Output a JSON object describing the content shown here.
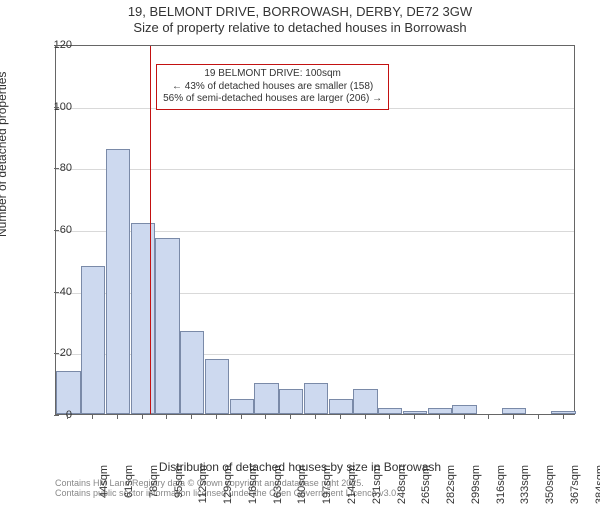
{
  "title": {
    "line1": "19, BELMONT DRIVE, BORROWASH, DERBY, DE72 3GW",
    "line2": "Size of property relative to detached houses in Borrowash"
  },
  "chart": {
    "type": "histogram",
    "background_color": "#ffffff",
    "grid_color": "#d9d9d9",
    "axis_color": "#666666",
    "bar_fill": "#cdd9ef",
    "bar_border": "#7a8aa8",
    "reference_line_color": "#c31111",
    "annotation_border": "#c31111",
    "ylim": [
      0,
      120
    ],
    "yticks": [
      0,
      20,
      40,
      60,
      80,
      100,
      120
    ],
    "xtick_labels": [
      "44sqm",
      "61sqm",
      "78sqm",
      "95sqm",
      "112sqm",
      "129sqm",
      "146sqm",
      "163sqm",
      "180sqm",
      "197sqm",
      "214sqm",
      "231sqm",
      "248sqm",
      "265sqm",
      "282sqm",
      "299sqm",
      "316sqm",
      "333sqm",
      "350sqm",
      "367sqm",
      "384sqm"
    ],
    "bars": [
      14,
      48,
      86,
      62,
      57,
      27,
      18,
      5,
      10,
      8,
      10,
      5,
      8,
      2,
      1,
      2,
      3,
      0,
      2,
      0,
      1
    ],
    "reference_value_index": 3.3,
    "ylabel": "Number of detached properties",
    "xlabel": "Distribution of detached houses by size in Borrowash",
    "label_fontsize": 12,
    "tick_fontsize": 11,
    "title_fontsize": 13,
    "annotation_fontsize": 10
  },
  "annotation": {
    "line1": "19 BELMONT DRIVE: 100sqm",
    "line2": "← 43% of detached houses are smaller (158)",
    "line3": "56% of semi-detached houses are larger (206) →"
  },
  "footer": {
    "line1": "Contains HM Land Registry data © Crown copyright and database right 2025.",
    "line2": "Contains public sector information licensed under the Open Government Licence v3.0."
  }
}
